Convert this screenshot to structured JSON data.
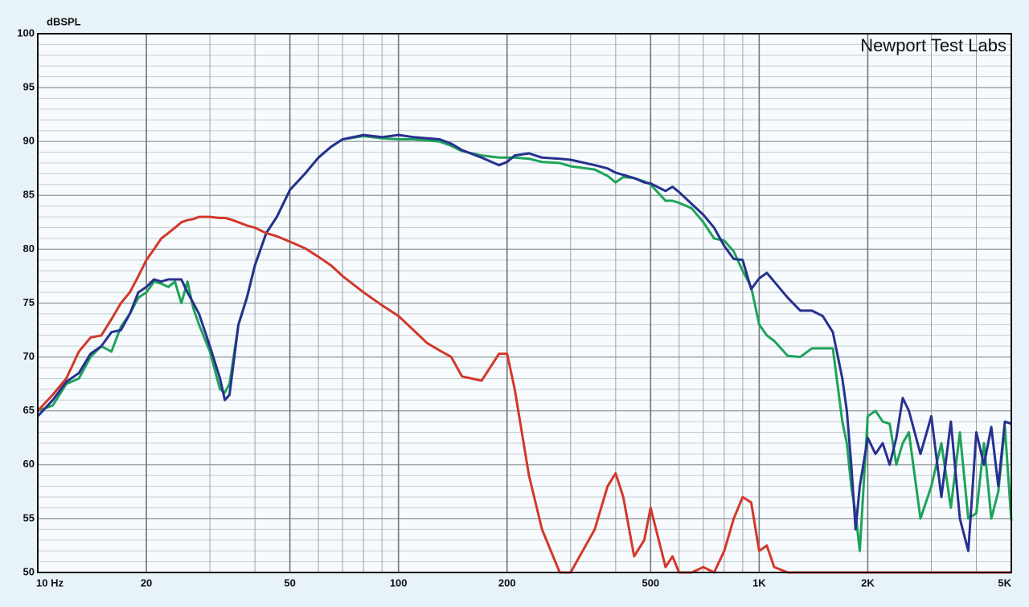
{
  "chart_data": {
    "type": "line",
    "y_label": "dBSPL",
    "annotation": "Newport Test Labs",
    "xscale": "log",
    "grid": true,
    "xlim": [
      10,
      5000
    ],
    "ylim": [
      50,
      100
    ],
    "xticks": [
      {
        "value": 10,
        "label": "10  Hz"
      },
      20,
      50,
      100,
      200,
      500,
      {
        "value": 1000,
        "label": "1K"
      },
      {
        "value": 2000,
        "label": "2K"
      },
      {
        "value": 5000,
        "label": "5K"
      }
    ],
    "yticks": [
      50,
      55,
      60,
      65,
      70,
      75,
      80,
      85,
      90,
      95,
      100
    ],
    "x": [
      10,
      11,
      12,
      13,
      14,
      15,
      16,
      17,
      18,
      19,
      20,
      21,
      22,
      23,
      24,
      25,
      26,
      27,
      28,
      30,
      32,
      33,
      34,
      36,
      38,
      40,
      43,
      46,
      50,
      55,
      60,
      65,
      70,
      80,
      90,
      100,
      110,
      120,
      130,
      140,
      150,
      170,
      190,
      200,
      210,
      230,
      250,
      280,
      300,
      350,
      380,
      400,
      420,
      450,
      480,
      500,
      550,
      575,
      600,
      650,
      700,
      750,
      800,
      850,
      900,
      950,
      1000,
      1050,
      1100,
      1200,
      1300,
      1400,
      1500,
      1600,
      1700,
      1750,
      1800,
      1850,
      1900,
      2000,
      2100,
      2200,
      2300,
      2400,
      2500,
      2600,
      2800,
      3000,
      3200,
      3400,
      3600,
      3800,
      4000,
      4200,
      4400,
      4600,
      4800,
      5000
    ],
    "series": [
      {
        "color": "#1ea35a",
        "values": [
          65,
          65.5,
          67.5,
          68,
          70,
          71,
          70.5,
          72.8,
          74,
          75.5,
          76,
          77,
          76.8,
          76.5,
          77,
          75,
          77,
          74.5,
          73,
          70.5,
          67,
          66.7,
          67.5,
          73,
          75.5,
          78.5,
          81.5,
          83,
          85.5,
          87,
          88.5,
          89.5,
          90.2,
          90.5,
          90.3,
          90.2,
          90.2,
          90.1,
          90,
          89.6,
          89.1,
          88.7,
          88.5,
          88.5,
          88.5,
          88.4,
          88.1,
          88,
          87.7,
          87.4,
          86.8,
          86.2,
          86.7,
          86.6,
          86.3,
          86,
          84.5,
          84.5,
          84.3,
          83.8,
          82.5,
          81,
          80.8,
          79.8,
          78,
          76.5,
          73,
          72,
          71.5,
          70.1,
          70,
          70.8,
          70.8,
          70.8,
          64,
          62,
          58,
          55.5,
          52,
          64.5,
          65,
          64,
          63.8,
          60,
          62,
          63,
          55,
          58,
          62,
          56,
          63,
          55,
          55.5,
          62,
          55,
          57.5,
          63.5,
          54.8
        ]
      },
      {
        "color": "#27318f",
        "values": [
          64.5,
          66,
          67.7,
          68.5,
          70.3,
          71,
          72.3,
          72.5,
          74,
          76,
          76.5,
          77.2,
          77,
          77.2,
          77.2,
          77.2,
          76,
          75,
          74,
          71,
          68,
          66,
          66.5,
          73,
          75.5,
          78.5,
          81.5,
          83,
          85.5,
          87,
          88.5,
          89.5,
          90.2,
          90.6,
          90.4,
          90.6,
          90.4,
          90.3,
          90.2,
          89.8,
          89.2,
          88.5,
          87.8,
          88.1,
          88.7,
          88.9,
          88.5,
          88.4,
          88.3,
          87.8,
          87.5,
          87.1,
          86.9,
          86.6,
          86.2,
          86.1,
          85.4,
          85.8,
          85.3,
          84.2,
          83.2,
          82,
          80.3,
          79.1,
          79,
          76.3,
          77.3,
          77.8,
          77,
          75.5,
          74.3,
          74.3,
          73.8,
          72.3,
          68,
          65,
          60,
          54,
          58,
          62.5,
          61,
          62,
          60,
          62.5,
          66.2,
          65,
          61,
          64.5,
          57,
          64,
          55,
          52,
          63,
          60,
          63.5,
          58,
          64,
          63.8
        ]
      },
      {
        "color": "#d4372b",
        "values": [
          65,
          66.5,
          68,
          70.5,
          71.8,
          72,
          73.5,
          75,
          76,
          77.5,
          79,
          80,
          81,
          81.5,
          82,
          82.5,
          82.7,
          82.8,
          83,
          83,
          82.9,
          82.9,
          82.8,
          82.5,
          82.2,
          82,
          81.5,
          81.2,
          80.7,
          80.1,
          79.3,
          78.5,
          77.5,
          76,
          74.8,
          73.8,
          72.5,
          71.3,
          70.6,
          70,
          68.2,
          67.8,
          70.3,
          70.3,
          67,
          59,
          54,
          50,
          50,
          54,
          58,
          59.2,
          57,
          51.5,
          53,
          56,
          50.5,
          51.5,
          50,
          50,
          50.5,
          50,
          52,
          55,
          57,
          56.5,
          52,
          52.5,
          50.5,
          50,
          50,
          50,
          50,
          50,
          50,
          50,
          50,
          50,
          50,
          50,
          50,
          50,
          50,
          50,
          50,
          50,
          50,
          50,
          50,
          50,
          50,
          50,
          50,
          50,
          50,
          50,
          50,
          50
        ]
      }
    ]
  }
}
